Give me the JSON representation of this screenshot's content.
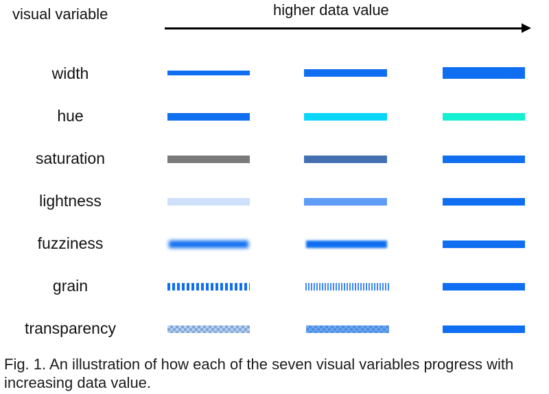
{
  "header": {
    "variable_label": "visual variable",
    "direction_label": "higher data value"
  },
  "colors": {
    "base_blue": "#0f6ff0"
  },
  "rows": [
    {
      "name": "width",
      "label": "width"
    },
    {
      "name": "hue",
      "label": "hue"
    },
    {
      "name": "saturation",
      "label": "saturation"
    },
    {
      "name": "lightness",
      "label": "lightness"
    },
    {
      "name": "fuzziness",
      "label": "fuzziness"
    },
    {
      "name": "grain",
      "label": "grain"
    },
    {
      "name": "transparency",
      "label": "transparency"
    }
  ],
  "caption": "Fig. 1. An illustration of how each of the seven visual variables progress with increasing data value."
}
